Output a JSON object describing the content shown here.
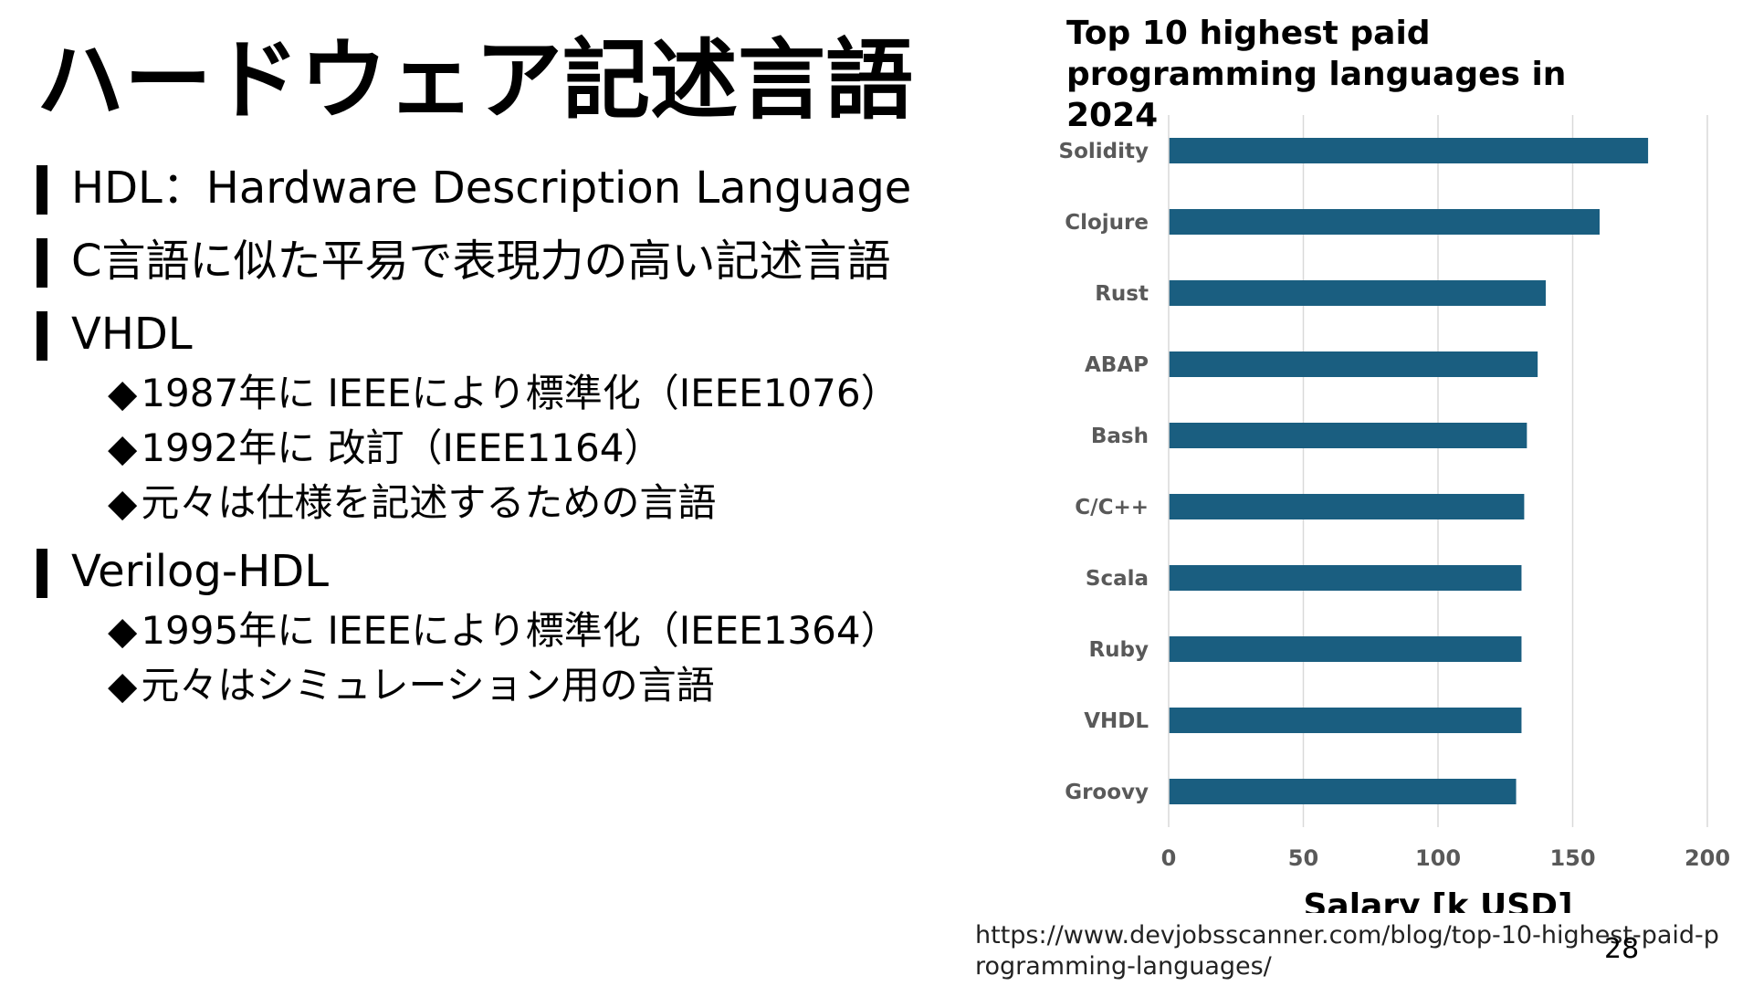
{
  "slide": {
    "title": "ハードウェア記述言語",
    "bullets": [
      {
        "text": "HDL：Hardware Description Language",
        "subs": []
      },
      {
        "text": "C言語に似た平易で表現力の高い記述言語",
        "subs": []
      },
      {
        "text": "VHDL",
        "subs": [
          "1987年に IEEEにより標準化（IEEE1076）",
          "1992年に 改訂（IEEE1164）",
          "元々は仕様を記述するための言語"
        ]
      },
      {
        "text": "Verilog-HDL",
        "subs": [
          "1995年に IEEEにより標準化（IEEE1364）",
          "元々はシミュレーション用の言語"
        ]
      }
    ],
    "sub_marker": "◆",
    "source_url": "https://www.devjobsscanner.com/blog/top-10-highest-paid-programming-languages/",
    "page_number": "28"
  },
  "colors": {
    "bar": "#1a5e80",
    "grid": "#d9d9d9",
    "text": "#000000",
    "tick": "#595959"
  },
  "chart_data": {
    "type": "bar",
    "orientation": "horizontal",
    "title": "Top 10 highest paid programming languages in 2024",
    "categories": [
      "Solidity",
      "Clojure",
      "Rust",
      "ABAP",
      "Bash",
      "C/C++",
      "Scala",
      "Ruby",
      "VHDL",
      "Groovy"
    ],
    "values": [
      178,
      160,
      140,
      137,
      133,
      132,
      131,
      131,
      131,
      129
    ],
    "xlabel": "Salary [k USD]",
    "ylabel": "",
    "xlim": [
      0,
      200
    ],
    "xticks": [
      "0",
      "50",
      "100",
      "150",
      "200"
    ],
    "grid": true
  }
}
